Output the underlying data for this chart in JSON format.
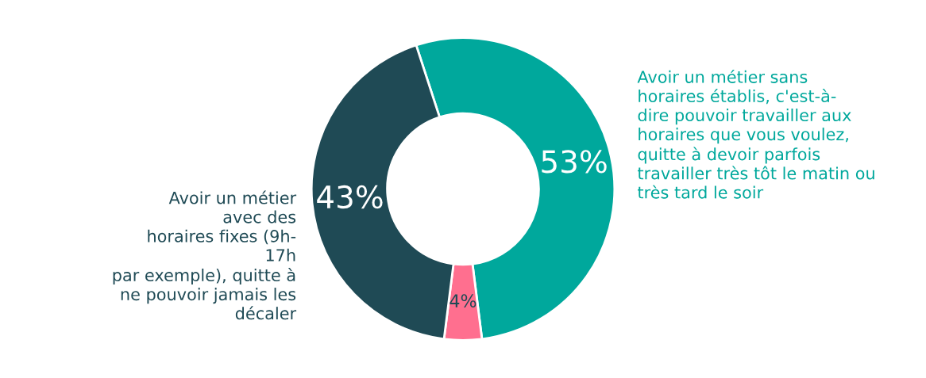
{
  "chart_data": {
    "type": "donut",
    "categories": [
      "Avoir un métier sans\nhoraires établis, c'est-à-\ndire pouvoir travailler aux\nhoraires que vous voulez,\nquitte à devoir parfois\ntravailler très tôt le matin ou\ntrès tard le soir",
      null,
      "Avoir un métier\navec des\nhoraires fixes (9h-\n17h\npar exemple), quitte à\nne pouvoir jamais les\ndécaler"
    ],
    "values": [
      53,
      4,
      43
    ],
    "colors": [
      "#00a89c",
      "#ff6f8f",
      "#1f4a55"
    ],
    "value_labels": [
      "53%",
      "4%",
      "43%"
    ]
  }
}
